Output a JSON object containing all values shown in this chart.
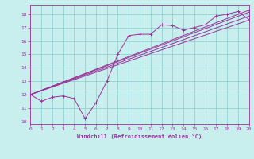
{
  "xlabel": "Windchill (Refroidissement éolien,°C)",
  "xlim": [
    0,
    20
  ],
  "ylim": [
    9.8,
    18.7
  ],
  "yticks": [
    10,
    11,
    12,
    13,
    14,
    15,
    16,
    17,
    18
  ],
  "xticks": [
    0,
    1,
    2,
    3,
    4,
    5,
    6,
    7,
    8,
    9,
    10,
    11,
    12,
    13,
    14,
    15,
    16,
    17,
    18,
    19,
    20
  ],
  "bg_color": "#c8eeee",
  "line_color": "#993399",
  "grid_color": "#88cccc",
  "main_line": {
    "x": [
      0,
      1,
      2,
      3,
      4,
      5,
      6,
      7,
      8,
      9,
      10,
      11,
      12,
      13,
      14,
      15,
      16,
      17,
      18,
      19,
      20
    ],
    "y": [
      12.0,
      11.5,
      11.8,
      11.9,
      11.7,
      10.2,
      11.4,
      13.0,
      15.0,
      16.4,
      16.5,
      16.5,
      17.2,
      17.15,
      16.8,
      17.0,
      17.2,
      17.85,
      18.0,
      18.2,
      17.6
    ]
  },
  "straight_lines": [
    {
      "x": [
        0,
        20
      ],
      "y": [
        12.0,
        17.55
      ]
    },
    {
      "x": [
        0,
        20
      ],
      "y": [
        12.0,
        17.85
      ]
    },
    {
      "x": [
        0,
        20
      ],
      "y": [
        12.0,
        18.15
      ]
    },
    {
      "x": [
        0,
        20
      ],
      "y": [
        12.0,
        18.3
      ]
    }
  ]
}
